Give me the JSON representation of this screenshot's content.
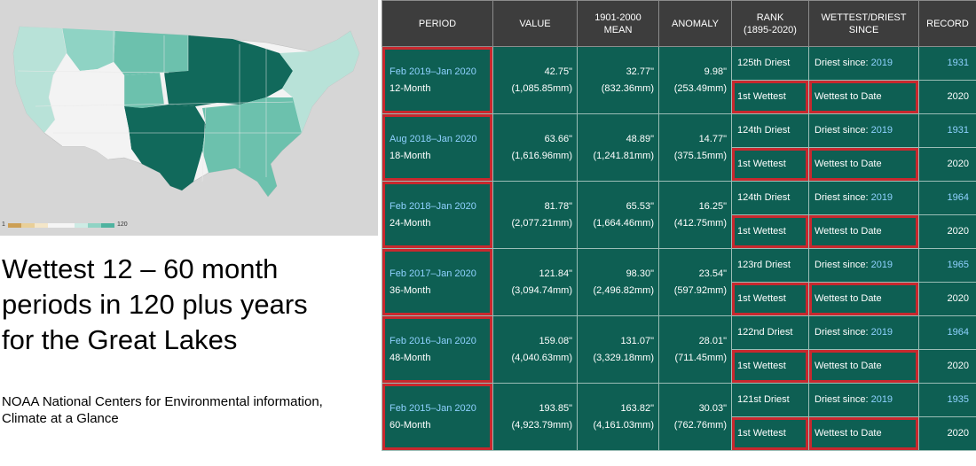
{
  "map": {
    "legend_min": "1",
    "legend_max": "120",
    "legend_colors": [
      "#cc9f55",
      "#e9cf98",
      "#f4e6c8",
      "#f5f5f5",
      "#f5f5f5",
      "#cdebe4",
      "#8fd3c4",
      "#4fb3a0"
    ]
  },
  "slide": {
    "title_lines": [
      "Wettest 12 – 60 month",
      "periods in 120 plus years",
      "for the Great Lakes"
    ],
    "source_lines": [
      "NOAA National Centers for Environmental information,",
      "Climate at a Glance"
    ]
  },
  "table": {
    "headers": {
      "period": "PERIOD",
      "value": "VALUE",
      "mean_line1": "1901-2000",
      "mean_line2": "MEAN",
      "anomaly": "ANOMALY",
      "rank_line1": "RANK",
      "rank_line2": "(1895-2020)",
      "since_line1": "WETTEST/DRIEST",
      "since_line2": "SINCE",
      "record": "RECORD"
    },
    "driest_prefix": "Driest since: ",
    "rows": [
      {
        "period_link": "Feb 2019–Jan 2020",
        "months": "12-Month",
        "value_in": "42.75\"",
        "value_mm": "(1,085.85mm)",
        "mean_in": "32.77\"",
        "mean_mm": "(832.36mm)",
        "anom_in": "9.98\"",
        "anom_mm": "(253.49mm)",
        "driest_rank": "125th Driest",
        "driest_since_year": "2019",
        "driest_record": "1931",
        "wettest_rank": "1st Wettest",
        "wettest_since": "Wettest to Date",
        "wettest_record": "2020"
      },
      {
        "period_link": "Aug 2018–Jan 2020",
        "months": "18-Month",
        "value_in": "63.66\"",
        "value_mm": "(1,616.96mm)",
        "mean_in": "48.89\"",
        "mean_mm": "(1,241.81mm)",
        "anom_in": "14.77\"",
        "anom_mm": "(375.15mm)",
        "driest_rank": "124th Driest",
        "driest_since_year": "2019",
        "driest_record": "1931",
        "wettest_rank": "1st Wettest",
        "wettest_since": "Wettest to Date",
        "wettest_record": "2020"
      },
      {
        "period_link": "Feb 2018–Jan 2020",
        "months": "24-Month",
        "value_in": "81.78\"",
        "value_mm": "(2,077.21mm)",
        "mean_in": "65.53\"",
        "mean_mm": "(1,664.46mm)",
        "anom_in": "16.25\"",
        "anom_mm": "(412.75mm)",
        "driest_rank": "124th Driest",
        "driest_since_year": "2019",
        "driest_record": "1964",
        "wettest_rank": "1st Wettest",
        "wettest_since": "Wettest to Date",
        "wettest_record": "2020"
      },
      {
        "period_link": "Feb 2017–Jan 2020",
        "months": "36-Month",
        "value_in": "121.84\"",
        "value_mm": "(3,094.74mm)",
        "mean_in": "98.30\"",
        "mean_mm": "(2,496.82mm)",
        "anom_in": "23.54\"",
        "anom_mm": "(597.92mm)",
        "driest_rank": "123rd Driest",
        "driest_since_year": "2019",
        "driest_record": "1965",
        "wettest_rank": "1st Wettest",
        "wettest_since": "Wettest to Date",
        "wettest_record": "2020"
      },
      {
        "period_link": "Feb 2016–Jan 2020",
        "months": "48-Month",
        "value_in": "159.08\"",
        "value_mm": "(4,040.63mm)",
        "mean_in": "131.07\"",
        "mean_mm": "(3,329.18mm)",
        "anom_in": "28.01\"",
        "anom_mm": "(711.45mm)",
        "driest_rank": "122nd Driest",
        "driest_since_year": "2019",
        "driest_record": "1964",
        "wettest_rank": "1st Wettest",
        "wettest_since": "Wettest to Date",
        "wettest_record": "2020"
      },
      {
        "period_link": "Feb 2015–Jan 2020",
        "months": "60-Month",
        "value_in": "193.85\"",
        "value_mm": "(4,923.79mm)",
        "mean_in": "163.82\"",
        "mean_mm": "(4,161.03mm)",
        "anom_in": "30.03\"",
        "anom_mm": "(762.76mm)",
        "driest_rank": "121st Driest",
        "driest_since_year": "2019",
        "driest_record": "1935",
        "wettest_rank": "1st Wettest",
        "wettest_since": "Wettest to Date",
        "wettest_record": "2020"
      }
    ]
  },
  "colors": {
    "header_bg": "#3d3d3d",
    "cell_bg": "#0e5f53",
    "link": "#8fd1ff",
    "highlight_border": "#c8282e",
    "map_dark": "#11695b",
    "map_mid": "#6cc1ad",
    "map_light": "#b8e2d8",
    "map_white": "#f3f3f3"
  }
}
